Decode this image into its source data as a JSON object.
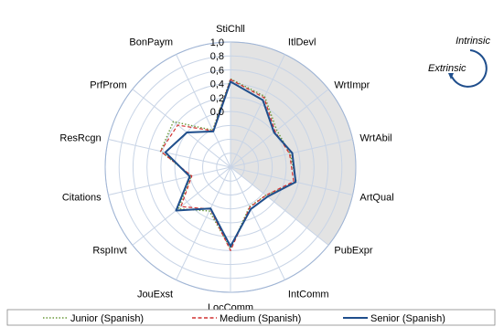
{
  "chart_data": {
    "type": "radar",
    "axes": [
      "StiChll",
      "ItlDevl",
      "WrtImpr",
      "WrtAbil",
      "ArtQual",
      "PubExpr",
      "IntComm",
      "LocComm",
      "JouExst",
      "RspInvt",
      "Citations",
      "ResRcgn",
      "PrfProm",
      "BonPaym"
    ],
    "rlim": [
      -0.8,
      1.0
    ],
    "tick_values": [
      0.0,
      0.2,
      0.4,
      0.6,
      0.8,
      1.0
    ],
    "tick_labels": [
      "0,0",
      "0,2",
      "0,4",
      "0,6",
      "0,8",
      "1,0"
    ],
    "intrinsic_axes": [
      "StiChll",
      "ItlDevl",
      "WrtImpr",
      "WrtAbil",
      "ArtQual",
      "PubExpr"
    ],
    "series": [
      {
        "name": "Junior (Spanish)",
        "color": "#6a9a3a",
        "dash": "dotted",
        "values": [
          0.47,
          0.33,
          0.05,
          0.08,
          0.17,
          -0.15,
          -0.17,
          0.37,
          -0.1,
          0.16,
          -0.22,
          0.23,
          0.25,
          -0.21
        ]
      },
      {
        "name": "Medium (Spanish)",
        "color": "#d03030",
        "dash": "dashed",
        "values": [
          0.46,
          0.31,
          0.02,
          0.07,
          0.13,
          -0.15,
          -0.16,
          0.4,
          -0.13,
          0.11,
          -0.23,
          0.23,
          0.17,
          -0.22
        ]
      },
      {
        "name": "Senior (Spanish)",
        "color": "#1f4e8c",
        "dash": "solid",
        "values": [
          0.43,
          0.27,
          0.0,
          0.11,
          0.16,
          -0.12,
          -0.13,
          0.34,
          -0.14,
          0.2,
          -0.2,
          0.16,
          0.0,
          -0.23
        ]
      }
    ],
    "legend_position": "bottom",
    "grid": true,
    "annotation": {
      "upper": "Intrinsic",
      "lower": "Extrinsic"
    }
  }
}
